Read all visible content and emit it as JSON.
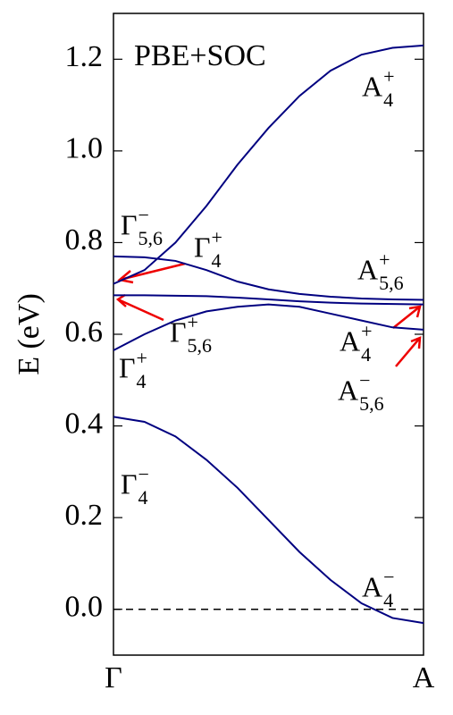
{
  "chart_data": {
    "type": "line",
    "title": "PBE+SOC",
    "y_label": "E (eV)",
    "x": [
      0,
      0.1,
      0.2,
      0.3,
      0.4,
      0.5,
      0.6,
      0.7,
      0.8,
      0.9,
      1
    ],
    "xlim": [
      0,
      1
    ],
    "xticks": [
      {
        "value": 0,
        "label": "Γ"
      },
      {
        "value": 1,
        "label": "A"
      }
    ],
    "ylim": [
      -0.1,
      1.3
    ],
    "yticks": [
      {
        "value": 0,
        "label": "0.0"
      },
      0.2,
      0.4,
      0.6,
      0.8,
      {
        "value": 1,
        "label": "1.0"
      },
      1.2
    ],
    "hlines": [
      0
    ],
    "series": [
      {
        "color": "#000080",
        "values": [
          0.42,
          0.409,
          0.377,
          0.326,
          0.265,
          0.195,
          0.125,
          0.064,
          0.013,
          -0.019,
          -0.03
        ]
      },
      {
        "color": "#000080",
        "values": [
          0.565,
          0.6,
          0.63,
          0.65,
          0.66,
          0.665,
          0.66,
          0.645,
          0.63,
          0.615,
          0.61
        ]
      },
      {
        "color": "#000080",
        "values": [
          0.685,
          0.685,
          0.684,
          0.683,
          0.68,
          0.676,
          0.672,
          0.669,
          0.667,
          0.666,
          0.665
        ]
      },
      {
        "color": "#000080",
        "values": [
          0.77,
          0.768,
          0.76,
          0.74,
          0.715,
          0.698,
          0.688,
          0.682,
          0.678,
          0.676,
          0.675
        ]
      },
      {
        "color": "#000080",
        "values": [
          0.71,
          0.74,
          0.8,
          0.88,
          0.97,
          1.05,
          1.12,
          1.175,
          1.21,
          1.225,
          1.23
        ]
      }
    ],
    "annotations": [
      {
        "base": "A",
        "sub": "4",
        "sup": "+"
      },
      {
        "base": "Γ",
        "sub": "5,6",
        "sup": "−"
      },
      {
        "base": "Γ",
        "sub": "4",
        "sup": "+"
      },
      {
        "base": "A",
        "sub": "5,6",
        "sup": "+"
      },
      {
        "base": "Γ",
        "sub": "5,6",
        "sup": "+"
      },
      {
        "base": "Γ",
        "sub": "4",
        "sup": "+"
      },
      {
        "base": "A",
        "sub": "4",
        "sup": "+"
      },
      {
        "base": "A",
        "sub": "5,6",
        "sup": "−"
      },
      {
        "base": "Γ",
        "sub": "4",
        "sup": "−"
      },
      {
        "base": "A",
        "sub": "4",
        "sup": "−"
      }
    ]
  }
}
